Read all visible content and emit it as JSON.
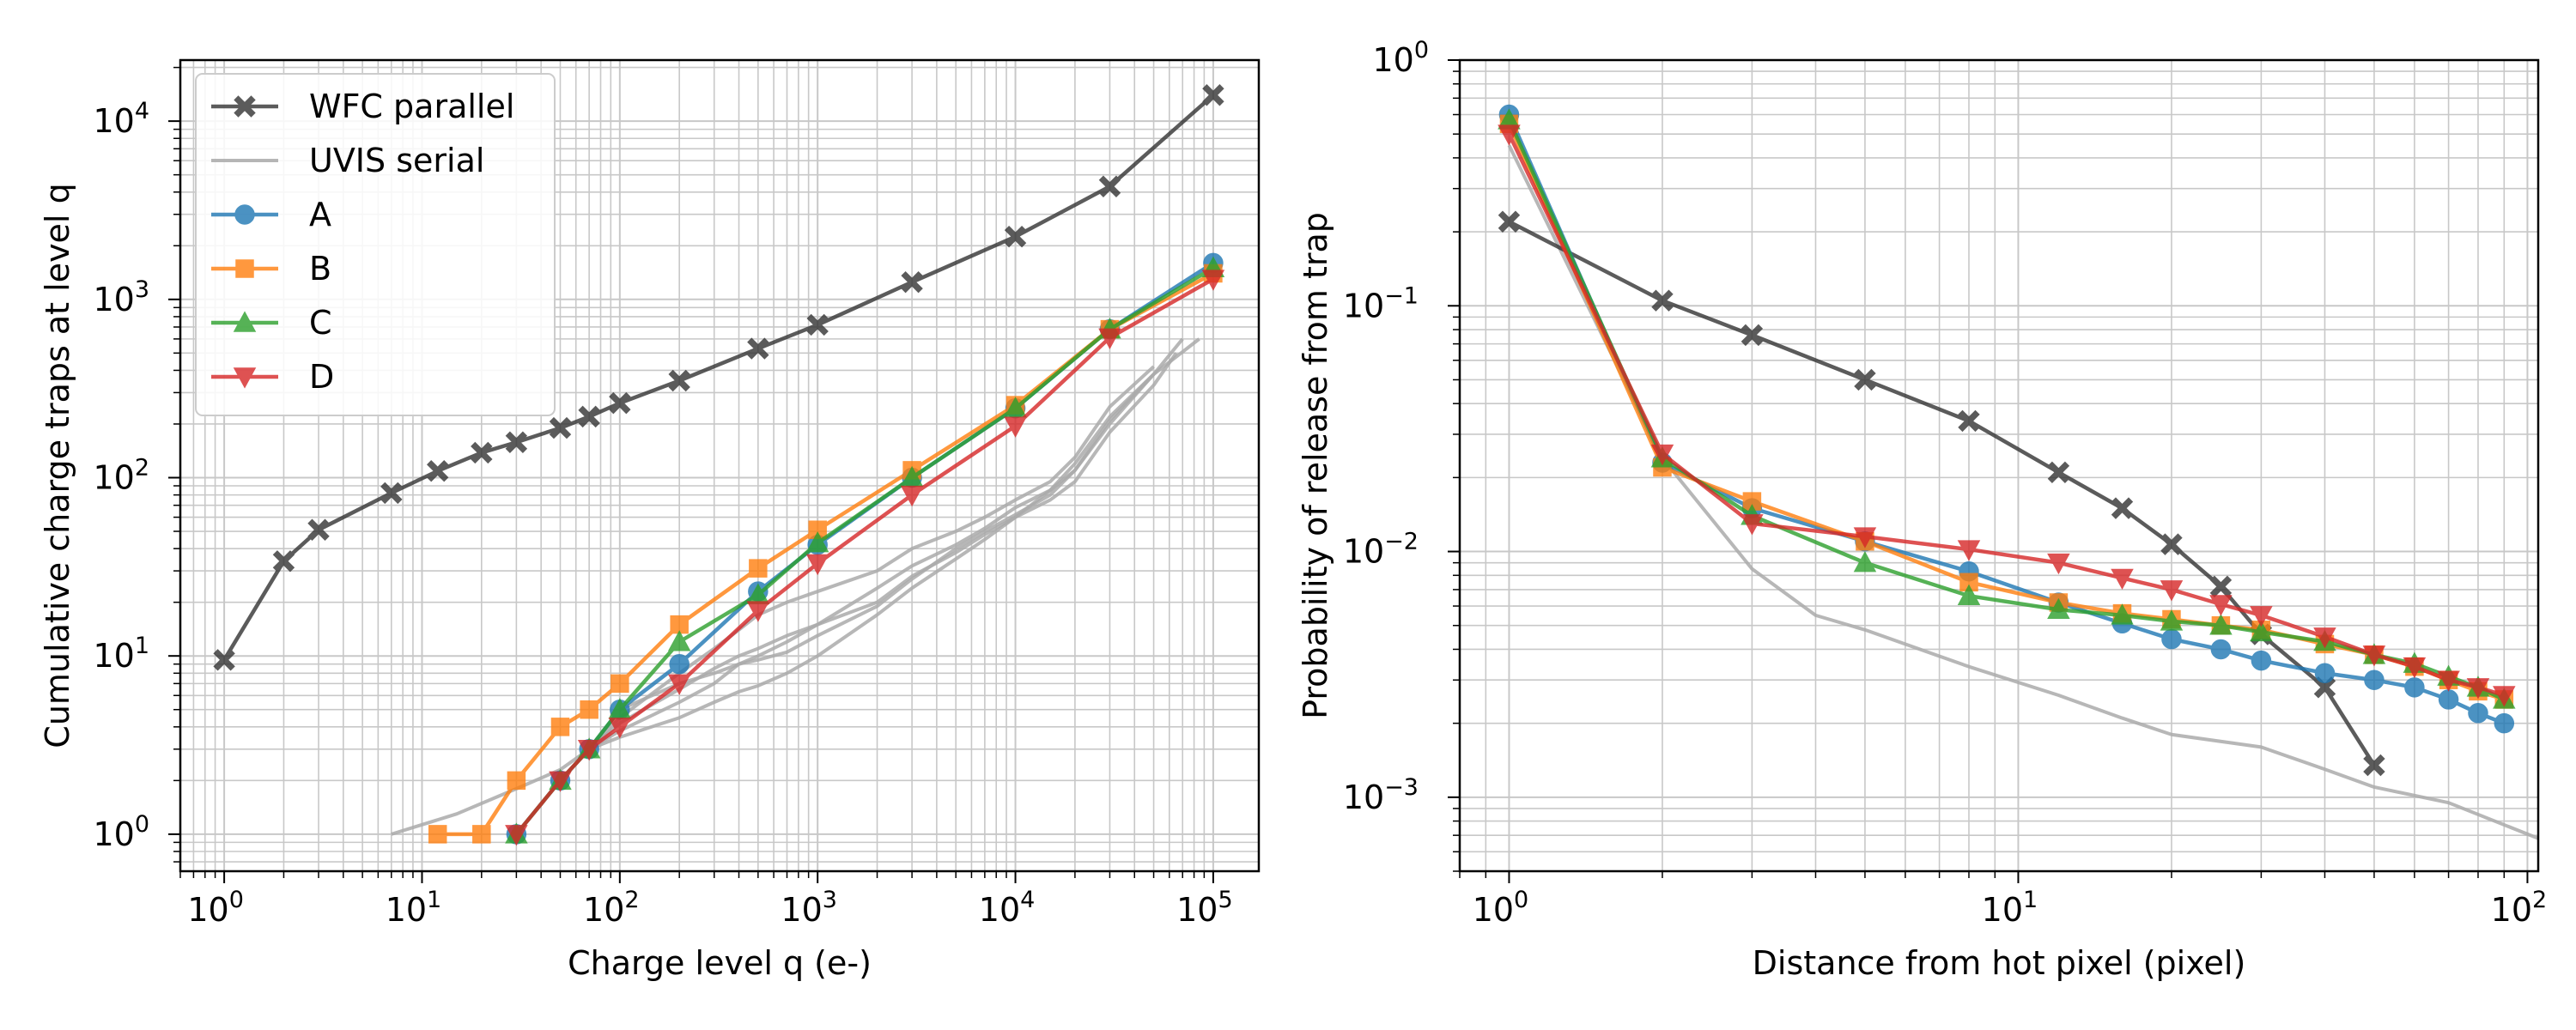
{
  "chart_data": [
    {
      "type": "line",
      "xscale": "log",
      "yscale": "log",
      "xlabel": "Charge level q (e-)",
      "ylabel": "Cumulative charge traps at level q",
      "xlim": [
        0.6,
        170000
      ],
      "ylim": [
        0.62,
        22000
      ],
      "xticks": [
        {
          "base": "10",
          "exp": "0"
        },
        {
          "base": "10",
          "exp": "1"
        },
        {
          "base": "10",
          "exp": "2"
        },
        {
          "base": "10",
          "exp": "3"
        },
        {
          "base": "10",
          "exp": "4"
        },
        {
          "base": "10",
          "exp": "5"
        }
      ],
      "yticks": [
        {
          "base": "10",
          "exp": "0"
        },
        {
          "base": "10",
          "exp": "1"
        },
        {
          "base": "10",
          "exp": "2"
        },
        {
          "base": "10",
          "exp": "3"
        },
        {
          "base": "10",
          "exp": "4"
        }
      ],
      "grid": true,
      "legend_position": "top-left",
      "legend": [
        {
          "label": "WFC parallel",
          "color": "#333333",
          "marker": "X"
        },
        {
          "label": "UVIS serial",
          "color": "#aaaaaa",
          "marker": "none"
        },
        {
          "label": "A",
          "color": "#1f77b4",
          "marker": "o"
        },
        {
          "label": "B",
          "color": "#ff7f0e",
          "marker": "s"
        },
        {
          "label": "C",
          "color": "#2ca02c",
          "marker": "^"
        },
        {
          "label": "D",
          "color": "#d62728",
          "marker": "v"
        }
      ],
      "series": [
        {
          "name": "UVIS serial",
          "color": "#aaaaaa",
          "marker": "none",
          "alpha": 0.85,
          "x": [
            7,
            15,
            30,
            50,
            70,
            100,
            200,
            300,
            400,
            500,
            700,
            1000,
            2000,
            3000,
            5000,
            7000,
            10000,
            15000,
            20000,
            30000,
            50000,
            85000
          ],
          "y": [
            1,
            1.3,
            1.8,
            2.3,
            3,
            3.5,
            4.5,
            5.5,
            6.3,
            6.8,
            8,
            10,
            17,
            24,
            35,
            45,
            60,
            85,
            120,
            220,
            380,
            600
          ]
        },
        {
          "name": "UVIS serial",
          "color": "#aaaaaa",
          "marker": "none",
          "alpha": 0.85,
          "x": [
            70,
            100,
            200,
            300,
            400,
            500,
            700,
            1000,
            2000,
            3000,
            5000,
            7000,
            10000,
            15000,
            20000,
            30000,
            50000,
            70000
          ],
          "y": [
            3,
            3.8,
            5.5,
            7,
            9,
            10,
            12,
            15,
            24,
            32,
            42,
            52,
            68,
            85,
            110,
            200,
            380,
            600
          ]
        },
        {
          "name": "UVIS serial",
          "color": "#aaaaaa",
          "marker": "none",
          "alpha": 0.85,
          "x": [
            70,
            100,
            200,
            300,
            400,
            500,
            700,
            1000,
            2000,
            3000,
            5000,
            7000,
            10000,
            15000,
            20000,
            30000,
            50000,
            65000
          ],
          "y": [
            3,
            4.2,
            6.5,
            8.5,
            10,
            11,
            13,
            15,
            20,
            28,
            38,
            48,
            60,
            75,
            95,
            180,
            330,
            500
          ]
        },
        {
          "name": "UVIS serial",
          "color": "#aaaaaa",
          "marker": "none",
          "alpha": 0.85,
          "x": [
            70,
            100,
            200,
            300,
            400,
            500,
            700,
            1000,
            2000,
            3000,
            5000,
            7000,
            10000,
            15000,
            20000,
            30000,
            50000
          ],
          "y": [
            3,
            4.5,
            8,
            11,
            14,
            17,
            20,
            23,
            30,
            40,
            50,
            60,
            75,
            95,
            130,
            250,
            420
          ]
        },
        {
          "name": "UVIS serial",
          "color": "#aaaaaa",
          "marker": "none",
          "alpha": 0.85,
          "x": [
            100,
            200,
            300,
            400,
            500,
            700,
            1000,
            2000,
            3000,
            5000,
            7000,
            10000,
            15000,
            20000,
            30000,
            50000
          ],
          "y": [
            5,
            7,
            8,
            9,
            9.5,
            10.5,
            13,
            19,
            27,
            40,
            50,
            62,
            80,
            110,
            210,
            380
          ]
        },
        {
          "name": "WFC parallel",
          "color": "#333333",
          "marker": "X",
          "x": [
            1,
            2,
            3,
            7,
            12,
            20,
            30,
            50,
            70,
            100,
            200,
            500,
            1000,
            3000,
            10000,
            30000,
            100000
          ],
          "y": [
            9.5,
            34,
            51,
            82,
            109,
            138,
            158,
            190,
            220,
            262,
            350,
            530,
            720,
            1250,
            2250,
            4300,
            14000
          ]
        },
        {
          "name": "A",
          "color": "#1f77b4",
          "marker": "o",
          "x": [
            30,
            50,
            70,
            100,
            200,
            500,
            1000,
            3000,
            10000,
            30000,
            100000
          ],
          "y": [
            1,
            2,
            3,
            5,
            9,
            23,
            42,
            100,
            245,
            680,
            1600
          ]
        },
        {
          "name": "B",
          "color": "#ff7f0e",
          "marker": "s",
          "x": [
            12,
            20,
            30,
            50,
            70,
            100,
            200,
            500,
            1000,
            3000,
            10000,
            30000,
            100000
          ],
          "y": [
            1,
            1,
            2,
            4,
            5,
            7,
            15,
            31,
            51,
            110,
            255,
            680,
            1400
          ]
        },
        {
          "name": "C",
          "color": "#2ca02c",
          "marker": "^",
          "x": [
            30,
            50,
            70,
            100,
            200,
            500,
            1000,
            3000,
            10000,
            30000,
            100000
          ],
          "y": [
            1,
            2,
            3,
            5,
            12,
            22,
            43,
            100,
            245,
            680,
            1500
          ]
        },
        {
          "name": "D",
          "color": "#d62728",
          "marker": "v",
          "x": [
            30,
            50,
            70,
            100,
            200,
            500,
            1000,
            3000,
            10000,
            30000,
            100000
          ],
          "y": [
            1,
            2,
            3,
            4,
            7,
            18,
            33,
            80,
            195,
            610,
            1300
          ]
        }
      ]
    },
    {
      "type": "line",
      "xscale": "log",
      "yscale": "log",
      "xlabel": "Distance from hot pixel (pixel)",
      "ylabel": "Probability of release from trap",
      "xlim": [
        0.8,
        105
      ],
      "ylim": [
        0.0005,
        1
      ],
      "xticks": [
        {
          "base": "10",
          "exp": "0"
        },
        {
          "base": "10",
          "exp": "1"
        },
        {
          "base": "10",
          "exp": "2"
        }
      ],
      "yticks": [
        {
          "base": "10",
          "exp": "−3"
        },
        {
          "base": "10",
          "exp": "−2"
        },
        {
          "base": "10",
          "exp": "−1"
        },
        {
          "base": "10",
          "exp": "0"
        }
      ],
      "grid": true,
      "series": [
        {
          "name": "UVIS serial",
          "color": "#aaaaaa",
          "marker": "none",
          "alpha": 0.85,
          "x": [
            1,
            2,
            3,
            4,
            5,
            8,
            12,
            16,
            20,
            30,
            40,
            50,
            70,
            105
          ],
          "y": [
            0.45,
            0.024,
            0.0085,
            0.0055,
            0.0048,
            0.0034,
            0.0026,
            0.0021,
            0.0018,
            0.0016,
            0.0013,
            0.0011,
            0.00095,
            0.00068
          ]
        },
        {
          "name": "WFC parallel",
          "color": "#333333",
          "marker": "X",
          "x": [
            1,
            2,
            3,
            5,
            8,
            12,
            16,
            20,
            25,
            30,
            40,
            50
          ],
          "y": [
            0.22,
            0.105,
            0.076,
            0.05,
            0.034,
            0.021,
            0.015,
            0.0107,
            0.0072,
            0.0046,
            0.0028,
            0.00135
          ]
        },
        {
          "name": "A",
          "color": "#1f77b4",
          "marker": "o",
          "x": [
            1,
            2,
            3,
            5,
            8,
            12,
            16,
            20,
            25,
            30,
            40,
            50,
            60,
            70,
            80,
            90
          ],
          "y": [
            0.6,
            0.023,
            0.015,
            0.011,
            0.0083,
            0.0062,
            0.0051,
            0.0044,
            0.004,
            0.0036,
            0.0032,
            0.003,
            0.0028,
            0.0025,
            0.0022,
            0.002
          ]
        },
        {
          "name": "B",
          "color": "#ff7f0e",
          "marker": "s",
          "x": [
            1,
            2,
            3,
            5,
            8,
            12,
            16,
            20,
            25,
            30,
            40,
            50,
            60,
            70,
            80,
            90
          ],
          "y": [
            0.55,
            0.022,
            0.016,
            0.011,
            0.0075,
            0.0062,
            0.0056,
            0.0053,
            0.005,
            0.0048,
            0.0042,
            0.0038,
            0.0034,
            0.003,
            0.0027,
            0.0025
          ]
        },
        {
          "name": "C",
          "color": "#2ca02c",
          "marker": "^",
          "x": [
            1,
            2,
            3,
            5,
            8,
            12,
            16,
            20,
            25,
            30,
            40,
            50,
            60,
            70,
            80,
            90
          ],
          "y": [
            0.57,
            0.024,
            0.014,
            0.009,
            0.0066,
            0.0058,
            0.0055,
            0.0052,
            0.005,
            0.0047,
            0.0043,
            0.0038,
            0.0035,
            0.0031,
            0.0028,
            0.0025
          ]
        },
        {
          "name": "D",
          "color": "#d62728",
          "marker": "v",
          "x": [
            1,
            2,
            3,
            5,
            8,
            12,
            16,
            20,
            25,
            30,
            40,
            50,
            60,
            70,
            80,
            90
          ],
          "y": [
            0.5,
            0.025,
            0.013,
            0.0115,
            0.0102,
            0.009,
            0.0078,
            0.007,
            0.0061,
            0.0055,
            0.0045,
            0.0038,
            0.0034,
            0.003,
            0.0028,
            0.0026
          ]
        }
      ]
    }
  ]
}
